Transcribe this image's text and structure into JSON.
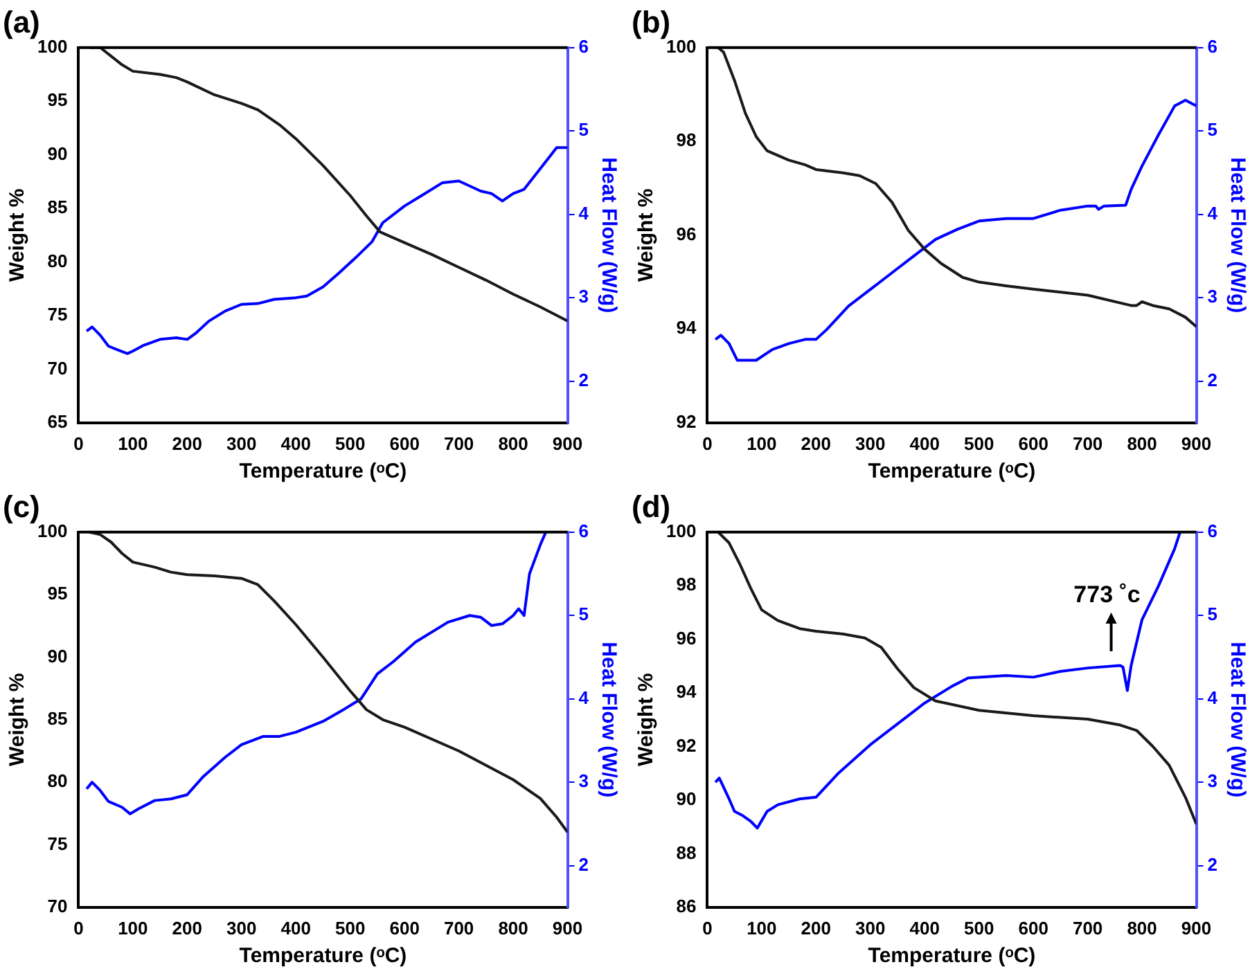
{
  "chart_data": [
    {
      "type": "line",
      "title": "(a)",
      "xlabel": "Temperature (ᵒC)",
      "ylabel": "Weight %",
      "y2label": "Heat Flow (W/g)",
      "xlim": [
        0,
        900
      ],
      "xticks": [
        0,
        100,
        200,
        300,
        400,
        500,
        600,
        700,
        800,
        900
      ],
      "ylim": [
        65,
        100
      ],
      "yticks": [
        65,
        70,
        75,
        80,
        85,
        90,
        95,
        100
      ],
      "y2lim": [
        1.5,
        6
      ],
      "y2ticks": [
        2,
        3,
        4,
        5,
        6
      ],
      "grid": false,
      "legend": false,
      "series": [
        {
          "color": "#1a1a1a",
          "x": [
            20,
            40,
            60,
            80,
            100,
            150,
            180,
            200,
            250,
            300,
            330,
            370,
            400,
            450,
            500,
            530,
            555,
            600,
            650,
            700,
            750,
            800,
            850,
            900
          ],
          "values": [
            100,
            100,
            99.2,
            98.4,
            97.8,
            97.5,
            97.2,
            96.8,
            95.6,
            94.8,
            94.2,
            92.8,
            91.5,
            89,
            86.2,
            84.3,
            82.8,
            81.8,
            80.7,
            79.5,
            78.3,
            77,
            75.8,
            74.5
          ]
        },
        {
          "color": "#0000ff",
          "axis": "y2",
          "x": [
            15,
            25,
            40,
            55,
            70,
            90,
            100,
            120,
            150,
            180,
            200,
            215,
            240,
            270,
            300,
            330,
            360,
            400,
            420,
            450,
            480,
            510,
            540,
            560,
            600,
            630,
            670,
            700,
            740,
            760,
            780,
            800,
            820,
            850,
            880,
            900
          ],
          "values": [
            2.6,
            2.65,
            2.55,
            2.42,
            2.38,
            2.33,
            2.36,
            2.43,
            2.5,
            2.52,
            2.5,
            2.57,
            2.72,
            2.84,
            2.92,
            2.93,
            2.98,
            3.0,
            3.02,
            3.13,
            3.3,
            3.48,
            3.67,
            3.9,
            4.1,
            4.22,
            4.38,
            4.4,
            4.28,
            4.25,
            4.16,
            4.25,
            4.3,
            4.55,
            4.8,
            4.8
          ]
        }
      ]
    },
    {
      "type": "line",
      "title": "(b)",
      "xlabel": "Temperature (ᵒC)",
      "ylabel": "Weight %",
      "y2label": "Heat Flow (W/g)",
      "xlim": [
        0,
        900
      ],
      "xticks": [
        0,
        100,
        200,
        300,
        400,
        500,
        600,
        700,
        800,
        900
      ],
      "ylim": [
        92,
        100
      ],
      "yticks": [
        92,
        94,
        96,
        98,
        100
      ],
      "y2lim": [
        1.5,
        6
      ],
      "y2ticks": [
        2,
        3,
        4,
        5,
        6
      ],
      "grid": false,
      "legend": false,
      "series": [
        {
          "color": "#1a1a1a",
          "x": [
            20,
            30,
            50,
            70,
            90,
            110,
            150,
            180,
            200,
            250,
            280,
            310,
            340,
            370,
            400,
            430,
            470,
            500,
            550,
            600,
            700,
            780,
            790,
            800,
            820,
            850,
            880,
            900
          ],
          "values": [
            100,
            99.9,
            99.3,
            98.6,
            98.1,
            97.8,
            97.6,
            97.5,
            97.4,
            97.33,
            97.27,
            97.1,
            96.7,
            96.1,
            95.7,
            95.4,
            95.1,
            95.0,
            94.92,
            94.85,
            94.72,
            94.5,
            94.5,
            94.58,
            94.5,
            94.43,
            94.25,
            94.05
          ]
        },
        {
          "color": "#0000ff",
          "axis": "y2",
          "x": [
            15,
            25,
            40,
            55,
            90,
            120,
            150,
            180,
            200,
            220,
            260,
            300,
            340,
            380,
            420,
            460,
            500,
            550,
            600,
            650,
            700,
            715,
            720,
            730,
            770,
            780,
            800,
            830,
            860,
            880,
            900
          ],
          "values": [
            2.5,
            2.55,
            2.45,
            2.25,
            2.25,
            2.38,
            2.45,
            2.5,
            2.5,
            2.62,
            2.9,
            3.1,
            3.3,
            3.5,
            3.7,
            3.82,
            3.92,
            3.95,
            3.95,
            4.05,
            4.1,
            4.1,
            4.06,
            4.1,
            4.11,
            4.3,
            4.58,
            4.95,
            5.3,
            5.37,
            5.3
          ]
        }
      ]
    },
    {
      "type": "line",
      "title": "(c)",
      "xlabel": "Temperature (ᵒC)",
      "ylabel": "Weight %",
      "y2label": "Heat Flow (W/g)",
      "xlim": [
        0,
        900
      ],
      "xticks": [
        0,
        100,
        200,
        300,
        400,
        500,
        600,
        700,
        800,
        900
      ],
      "ylim": [
        70,
        100
      ],
      "yticks": [
        70,
        75,
        80,
        85,
        90,
        95,
        100
      ],
      "y2lim": [
        1.5,
        6
      ],
      "y2ticks": [
        2,
        3,
        4,
        5,
        6
      ],
      "grid": false,
      "legend": false,
      "series": [
        {
          "color": "#1a1a1a",
          "x": [
            20,
            40,
            60,
            80,
            100,
            140,
            170,
            200,
            250,
            300,
            330,
            360,
            400,
            450,
            500,
            530,
            560,
            600,
            700,
            800,
            850,
            880,
            900
          ],
          "values": [
            100,
            99.8,
            99.2,
            98.3,
            97.6,
            97.2,
            96.8,
            96.6,
            96.5,
            96.3,
            95.8,
            94.5,
            92.6,
            90,
            87.3,
            85.8,
            85,
            84.4,
            82.5,
            80.2,
            78.7,
            77.2,
            76
          ]
        },
        {
          "color": "#0000ff",
          "axis": "y2",
          "x": [
            15,
            25,
            40,
            55,
            80,
            95,
            110,
            140,
            170,
            200,
            230,
            270,
            300,
            340,
            370,
            400,
            450,
            490,
            520,
            550,
            580,
            620,
            680,
            720,
            740,
            760,
            780,
            800,
            810,
            820,
            830,
            850,
            860
          ],
          "values": [
            2.92,
            3.0,
            2.9,
            2.77,
            2.7,
            2.62,
            2.68,
            2.78,
            2.8,
            2.85,
            3.07,
            3.3,
            3.45,
            3.55,
            3.55,
            3.6,
            3.73,
            3.88,
            4.0,
            4.3,
            4.45,
            4.68,
            4.92,
            5.0,
            4.98,
            4.88,
            4.9,
            5.0,
            5.08,
            5.0,
            5.5,
            5.85,
            6.0
          ]
        }
      ]
    },
    {
      "type": "line",
      "title": "(d)",
      "xlabel": "Temperature (ᵒC)",
      "ylabel": "Weight %",
      "y2label": "Heat Flow (W/g)",
      "xlim": [
        0,
        900
      ],
      "xticks": [
        0,
        100,
        200,
        300,
        400,
        500,
        600,
        700,
        800,
        900
      ],
      "ylim": [
        86,
        100
      ],
      "yticks": [
        86,
        88,
        90,
        92,
        94,
        96,
        98,
        100
      ],
      "y2lim": [
        1.5,
        6
      ],
      "y2ticks": [
        2,
        3,
        4,
        5,
        6
      ],
      "grid": false,
      "legend": false,
      "annotations": [
        "773 ˚c"
      ],
      "series": [
        {
          "color": "#1a1a1a",
          "x": [
            20,
            40,
            60,
            80,
            100,
            130,
            170,
            200,
            250,
            290,
            320,
            350,
            380,
            420,
            500,
            600,
            700,
            760,
            790,
            820,
            850,
            880,
            900
          ],
          "values": [
            100,
            99.6,
            98.8,
            97.9,
            97.1,
            96.7,
            96.4,
            96.3,
            96.2,
            96.05,
            95.7,
            94.9,
            94.2,
            93.7,
            93.35,
            93.15,
            93.02,
            92.8,
            92.6,
            92,
            91.3,
            90.1,
            89.1
          ]
        },
        {
          "color": "#0000ff",
          "axis": "y2",
          "x": [
            15,
            22,
            40,
            50,
            65,
            80,
            92,
            110,
            130,
            170,
            200,
            240,
            300,
            350,
            400,
            450,
            480,
            550,
            600,
            650,
            700,
            760,
            765,
            773,
            780,
            800,
            830,
            860,
            870
          ],
          "values": [
            3.0,
            3.05,
            2.8,
            2.65,
            2.6,
            2.53,
            2.45,
            2.65,
            2.73,
            2.8,
            2.82,
            3.1,
            3.45,
            3.7,
            3.95,
            4.15,
            4.25,
            4.28,
            4.26,
            4.33,
            4.37,
            4.4,
            4.38,
            4.1,
            4.4,
            4.95,
            5.35,
            5.8,
            6.0
          ]
        }
      ]
    }
  ]
}
